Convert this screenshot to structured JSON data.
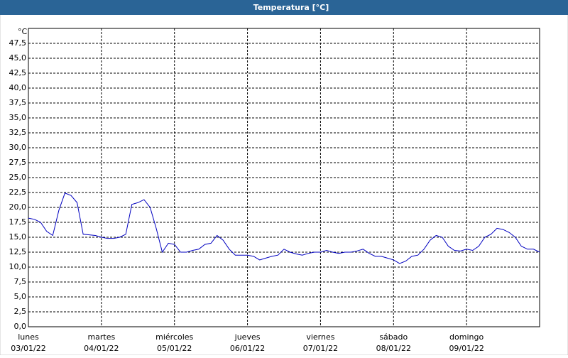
{
  "chart_data": {
    "type": "line",
    "title": "Temperatura [°C]",
    "y_unit": "°C",
    "x": [
      0,
      2,
      4,
      6,
      8,
      10,
      12,
      14,
      16,
      18,
      20,
      22,
      24,
      26,
      28,
      30,
      32,
      34,
      36,
      38,
      40,
      42,
      44,
      46,
      48,
      50,
      52,
      54,
      56,
      58,
      60,
      62,
      64,
      66,
      68,
      70,
      72,
      74,
      76,
      78,
      80,
      82,
      84,
      86,
      88,
      90,
      92,
      94,
      96,
      98,
      100,
      102,
      104,
      106,
      108,
      110,
      112,
      114,
      116,
      118,
      120,
      122,
      124,
      126,
      128,
      130,
      132,
      134,
      136,
      138,
      140,
      142,
      144,
      146,
      148,
      150,
      152,
      154,
      156,
      158,
      160,
      162,
      164,
      166,
      168
    ],
    "series": [
      {
        "color": "#0000c0",
        "values": [
          18.2,
          18.0,
          17.5,
          16.0,
          15.3,
          19.5,
          22.4,
          22.0,
          20.8,
          15.5,
          15.4,
          15.3,
          15.0,
          14.8,
          14.8,
          15.0,
          15.5,
          20.5,
          20.8,
          21.3,
          20.0,
          16.5,
          12.5,
          14.0,
          13.8,
          12.5,
          12.5,
          12.8,
          13.0,
          13.8,
          14.0,
          15.3,
          14.5,
          13.0,
          12.0,
          12.0,
          12.0,
          11.8,
          11.2,
          11.5,
          11.8,
          12.0,
          13.0,
          12.5,
          12.2,
          12.0,
          12.3,
          12.5,
          12.5,
          12.8,
          12.5,
          12.3,
          12.5,
          12.5,
          12.7,
          13.0,
          12.3,
          11.8,
          11.8,
          11.5,
          11.2,
          10.6,
          11.0,
          11.8,
          12.0,
          13.0,
          14.5,
          15.3,
          15.0,
          13.5,
          12.8,
          12.7,
          13.0,
          12.8,
          13.5,
          15.0,
          15.5,
          16.5,
          16.3,
          15.8,
          15.0,
          13.5,
          13.0,
          13.0,
          12.5
        ]
      }
    ],
    "xlim": [
      0,
      168
    ],
    "xticks": [
      {
        "value": 0,
        "label": "lunes",
        "date": "03/01/22"
      },
      {
        "value": 24,
        "label": "martes",
        "date": "04/01/22"
      },
      {
        "value": 48,
        "label": "miércoles",
        "date": "05/01/22"
      },
      {
        "value": 72,
        "label": "jueves",
        "date": "06/01/22"
      },
      {
        "value": 96,
        "label": "viernes",
        "date": "07/01/22"
      },
      {
        "value": 120,
        "label": "sábado",
        "date": "08/01/22"
      },
      {
        "value": 144,
        "label": "domingo",
        "date": "09/01/22"
      }
    ],
    "ylim": [
      0,
      50
    ],
    "yticks": [
      {
        "value": 0,
        "label": "0,0"
      },
      {
        "value": 2.5,
        "label": "2,5"
      },
      {
        "value": 5,
        "label": "5,0"
      },
      {
        "value": 7.5,
        "label": "7,5"
      },
      {
        "value": 10,
        "label": "10,0"
      },
      {
        "value": 12.5,
        "label": "12,5"
      },
      {
        "value": 15,
        "label": "15,0"
      },
      {
        "value": 17.5,
        "label": "17,5"
      },
      {
        "value": 20,
        "label": "20,0"
      },
      {
        "value": 22.5,
        "label": "22,5"
      },
      {
        "value": 25,
        "label": "25,0"
      },
      {
        "value": 27.5,
        "label": "27,5"
      },
      {
        "value": 30,
        "label": "30,0"
      },
      {
        "value": 32.5,
        "label": "32,5"
      },
      {
        "value": 35,
        "label": "35,0"
      },
      {
        "value": 37.5,
        "label": "37,5"
      },
      {
        "value": 40,
        "label": "40,0"
      },
      {
        "value": 42.5,
        "label": "42,5"
      },
      {
        "value": 45,
        "label": "45,0"
      },
      {
        "value": 47.5,
        "label": "47,5"
      }
    ],
    "grid": true
  }
}
